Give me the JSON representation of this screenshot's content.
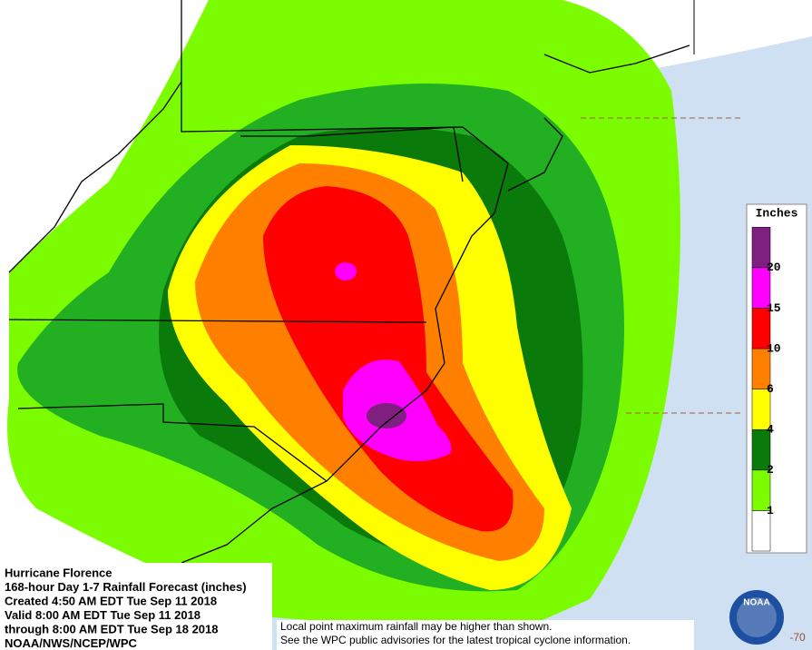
{
  "info": {
    "lines": [
      "Hurricane Florence",
      "168-hour Day 1-7 Rainfall Forecast (inches)",
      "Created 4:50 AM EDT Tue Sep 11 2018",
      "Valid 8:00 AM EDT Tue Sep 11 2018",
      "through 8:00 AM EDT Tue Sep 18 2018",
      "NOAA/NWS/NCEP/WPC"
    ]
  },
  "legend": {
    "title": "Inches",
    "ticks": [
      1,
      2,
      4,
      6,
      10,
      15,
      20
    ],
    "colors": [
      "#ffffff",
      "#7cfc00",
      "#0a7a0a",
      "#ffff00",
      "#ff8000",
      "#ff0000",
      "#ff00ff",
      "#7f1f7f"
    ]
  },
  "note": {
    "lines": [
      "Local point maximum rainfall may be higher than shown.",
      "See the WPC public advisories for the latest tropical cyclone information."
    ]
  },
  "logo": "NOAA",
  "lon_label": "-70"
}
